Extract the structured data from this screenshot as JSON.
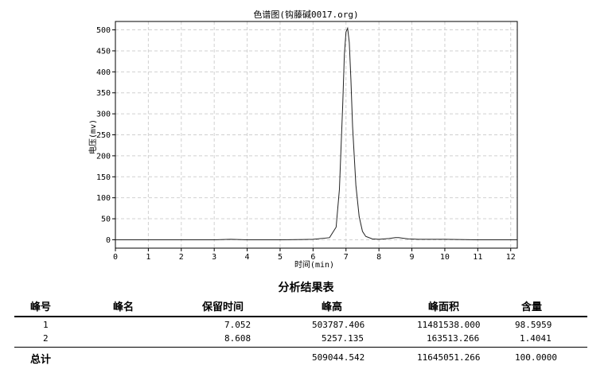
{
  "chart_data": {
    "type": "line",
    "title": "色谱图(钩藤碱0017.org)",
    "xlabel": "时间(min)",
    "ylabel": "电压(mv)",
    "xlim": [
      0,
      12.2
    ],
    "ylim": [
      -20,
      520
    ],
    "xticks": [
      0,
      1,
      2,
      3,
      4,
      5,
      6,
      7,
      8,
      9,
      10,
      11,
      12
    ],
    "yticks": [
      0,
      50,
      100,
      150,
      200,
      250,
      300,
      350,
      400,
      450,
      500
    ],
    "grid": true,
    "series": [
      {
        "x": [
          0,
          1,
          2,
          3,
          3.5,
          4,
          5,
          6,
          6.5,
          6.7,
          6.8,
          6.9,
          6.95,
          7.0,
          7.05,
          7.1,
          7.15,
          7.2,
          7.3,
          7.4,
          7.5,
          7.6,
          7.8,
          8.0,
          8.3,
          8.5,
          8.6,
          8.7,
          8.9,
          9.2,
          10,
          11,
          12.2
        ],
        "y": [
          0,
          0,
          0,
          0,
          1,
          0,
          0,
          1,
          5,
          30,
          120,
          320,
          440,
          495,
          504,
          470,
          380,
          270,
          130,
          55,
          20,
          8,
          2,
          1,
          3,
          5,
          5,
          4,
          2,
          1,
          1,
          0,
          0
        ]
      }
    ]
  },
  "report": {
    "title": "分析结果表",
    "headers": [
      "峰号",
      "峰名",
      "保留时间",
      "峰高",
      "峰面积",
      "含量"
    ],
    "rows": [
      [
        "1",
        "",
        "7.052",
        "503787.406",
        "11481538.000",
        "98.5959"
      ],
      [
        "2",
        "",
        "8.608",
        "5257.135",
        "163513.266",
        "1.4041"
      ]
    ],
    "total": {
      "label": "总计",
      "height": "509044.542",
      "area": "11645051.266",
      "content": "100.0000"
    }
  }
}
